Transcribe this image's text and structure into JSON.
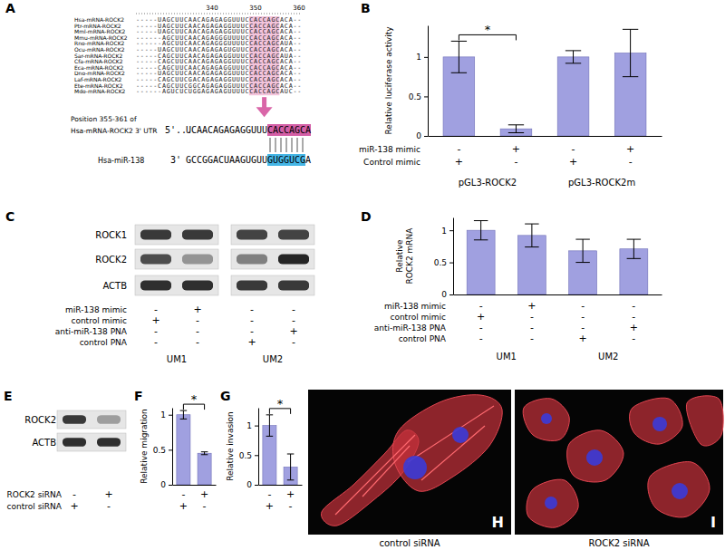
{
  "alignment": {
    "panel": "A",
    "ruler": [
      340,
      350,
      360
    ],
    "rows": [
      {
        "name": "Hsa-mRNA-ROCK2",
        "sequence": "-----UAGCUUCAACAGAGAGGUUUCCACCAGCACA--"
      },
      {
        "name": "Ptr-mRNA-ROCK2",
        "sequence": "-----UAGCUUCAACAGAGAGGUUUCCACCAGCACA--"
      },
      {
        "name": "Mml-mRNA-ROCK2",
        "sequence": "-----UAGCUUCAACAGAGAGGUUUCCACCAGCACA--"
      },
      {
        "name": "Mmu-mRNA-ROCK2",
        "sequence": "------AGCUUCAACAGAGGGUUUUCCACCAGCACA--"
      },
      {
        "name": "Rno-mRNA-ROCK2",
        "sequence": "------AGCUUCAACAGAGGGUUUUCCACCAGCAUA--"
      },
      {
        "name": "Ocu-mRNA-ROCK2",
        "sequence": "-----UAGCUUCAACAGAGAGUGUUCCACCAGCACA--"
      },
      {
        "name": "Sar-mRNA-ROCK2",
        "sequence": "-----CAGCUUCAACAGAGAGGUUUCCACCAGCAUA--"
      },
      {
        "name": "Cfa-mRNA-ROCK2",
        "sequence": "-----CAGCUUCAACAGAGAGGUUUCCACCAGCACA--"
      },
      {
        "name": "Eca-mRNA-ROCK2",
        "sequence": "-----CAGCUUCAACAGAGAGGUUUCCACCAGCACA--"
      },
      {
        "name": "Dno-mRNA-ROCK2",
        "sequence": "-----UAGCUUCAACAGAGAGGUUUCCACCAGCACA--"
      },
      {
        "name": "Laf-mRNA-ROCK2",
        "sequence": "-----CAGCUUCGACAGAGAGGUUUCCACCAGCACA--"
      },
      {
        "name": "Ete-mRNA-ROCK2",
        "sequence": "-----CAGCUUCGGCAGAGAGGUUUCCACCAGCACA--"
      },
      {
        "name": "Mdo-mRNA-ROCK2",
        "sequence": "------AGUCUCUGGAGAGAGUUUUCCACCAGCAUC--"
      }
    ],
    "seed_site": "CACCAGC",
    "target": {
      "title_lines": [
        "Position 355-361 of",
        "Hsa-mRNA-ROCK2 3' UTR"
      ],
      "end": "5'",
      "prefix": "...",
      "before": "UCAACAGAGAGGUUU",
      "site": "CACCAGCA"
    },
    "mirna": {
      "name": "Hsa-miR-138",
      "end": "3'",
      "before": "GCCGGACUAAGUGUU",
      "seed": "GUGGUCG",
      "after": "A"
    }
  },
  "chart_data": [
    {
      "panel": "B",
      "type": "bar",
      "y_label": "Relative luciferase activity",
      "categories": [
        null,
        null,
        null,
        null
      ],
      "values": [
        1.0,
        0.09,
        1.0,
        1.05
      ],
      "errors": [
        0.2,
        0.05,
        0.08,
        0.3
      ],
      "color": "#a0a0e0",
      "ylim": [
        0,
        1.4
      ],
      "yticks": [
        0,
        0.5,
        1
      ],
      "tick_labels": "y",
      "significance": [
        {
          "label": "*",
          "between": [
            0,
            1
          ]
        }
      ],
      "conditions": [
        {
          "label": "miR-138 mimic",
          "marks": [
            "-",
            "+",
            "-",
            "+"
          ]
        },
        {
          "label": "Control mimic",
          "marks": [
            "+",
            "-",
            "+",
            "-"
          ]
        }
      ],
      "groups": [
        {
          "label": "pGL3-ROCK2",
          "lanes": [
            0,
            1
          ]
        },
        {
          "label": "pGL3-ROCK2m",
          "lanes": [
            2,
            3
          ]
        }
      ]
    },
    {
      "panel": "D",
      "type": "bar",
      "y_label": [
        "Relative",
        "ROCK2 mRNA"
      ],
      "categories": [
        null,
        null,
        null,
        null
      ],
      "values": [
        1.0,
        0.92,
        0.68,
        0.71
      ],
      "errors": [
        0.15,
        0.18,
        0.18,
        0.15
      ],
      "color": "#a0a0e0",
      "ylim": [
        0,
        1.2
      ],
      "yticks": [
        0,
        0.5,
        1
      ],
      "tick_labels": "y",
      "conditions": [
        {
          "label": "miR-138 mimic",
          "marks": [
            "-",
            "+",
            "-",
            "-"
          ]
        },
        {
          "label": "control mimic",
          "marks": [
            "+",
            "-",
            "-",
            "-"
          ]
        },
        {
          "label": "anti-miR-138 PNA",
          "marks": [
            "-",
            "-",
            "-",
            "+"
          ]
        },
        {
          "label": "control PNA",
          "marks": [
            "-",
            "-",
            "+",
            "-"
          ]
        }
      ],
      "groups": [
        {
          "label": "UM1",
          "lanes": [
            0,
            1
          ]
        },
        {
          "label": "UM2",
          "lanes": [
            2,
            3
          ]
        }
      ]
    },
    {
      "panel": "F",
      "type": "bar",
      "y_label": "Relative migration",
      "categories": [
        null,
        null
      ],
      "values": [
        1.0,
        0.45
      ],
      "errors": [
        0.06,
        0.02
      ],
      "color": "#a0a0e0",
      "ylim": [
        0,
        1.1
      ],
      "yticks": [
        0,
        0.5,
        1
      ],
      "tick_labels": "y",
      "significance": [
        {
          "label": "*",
          "between": [
            0,
            1
          ]
        }
      ],
      "conditions": [
        {
          "marks": [
            "-",
            "+"
          ]
        },
        {
          "marks": [
            "+",
            "-"
          ]
        }
      ]
    },
    {
      "panel": "G",
      "type": "bar",
      "y_label": "Relative invasion",
      "categories": [
        null,
        null
      ],
      "values": [
        1.0,
        0.3
      ],
      "errors": [
        0.18,
        0.22
      ],
      "color": "#a0a0e0",
      "ylim": [
        0,
        1.3
      ],
      "yticks": [
        0,
        0.5,
        1
      ],
      "tick_labels": "y",
      "significance": [
        {
          "label": "*",
          "between": [
            0,
            1
          ]
        }
      ],
      "conditions": [
        {
          "marks": [
            "-",
            "+"
          ]
        },
        {
          "marks": [
            "+",
            "-"
          ]
        }
      ]
    }
  ],
  "blots": [
    {
      "panel": "C",
      "rows": [
        {
          "label": "ROCK1",
          "intensities": [
            0.8,
            0.8,
            0.75,
            0.75
          ]
        },
        {
          "label": "ROCK2",
          "intensities": [
            0.7,
            0.35,
            0.45,
            0.9
          ]
        },
        {
          "label": "ACTB",
          "intensities": [
            0.85,
            0.85,
            0.8,
            0.8
          ]
        }
      ],
      "conditions": [
        {
          "label": "miR-138 mimic",
          "marks": [
            "-",
            "+",
            "-",
            "-"
          ]
        },
        {
          "label": "control mimic",
          "marks": [
            "+",
            "-",
            "-",
            "-"
          ]
        },
        {
          "label": "anti-miR-138 PNA",
          "marks": [
            "-",
            "-",
            "-",
            "+"
          ]
        },
        {
          "label": "control PNA",
          "marks": [
            "-",
            "-",
            "+",
            "-"
          ]
        }
      ],
      "groups": [
        {
          "label": "UM1",
          "lanes": [
            0,
            1
          ]
        },
        {
          "label": "UM2",
          "lanes": [
            2,
            3
          ]
        }
      ]
    },
    {
      "panel": "E",
      "rows": [
        {
          "label": "ROCK2",
          "intensities": [
            0.8,
            0.3
          ]
        },
        {
          "label": "ACTB",
          "intensities": [
            0.85,
            0.85
          ]
        }
      ],
      "conditions": [
        {
          "label": "ROCK2 siRNA",
          "marks": [
            "-",
            "+"
          ]
        },
        {
          "label": "control siRNA",
          "marks": [
            "+",
            "-"
          ]
        }
      ]
    }
  ],
  "images": [
    {
      "panel": "H",
      "caption": "control siRNA"
    },
    {
      "panel": "I",
      "caption": "ROCK2 siRNA"
    }
  ]
}
